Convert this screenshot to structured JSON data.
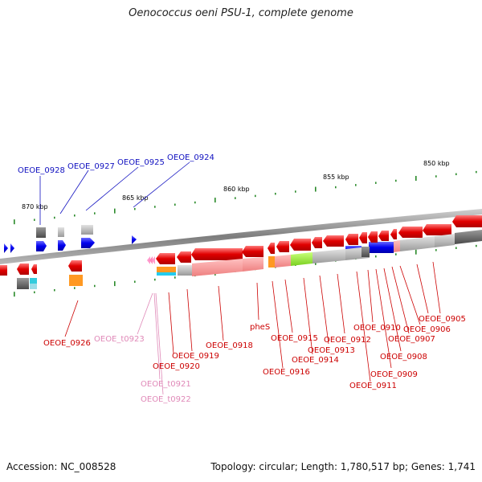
{
  "title": "Oenococcus oeni PSU-1, complete genome",
  "footer": {
    "accession": "Accession: NC_008528",
    "topology": "Topology: circular; Length: 1,780,517 bp; Genes: 1,741"
  },
  "scale_labels": [
    "850 kbp",
    "855 kbp",
    "860 kbp",
    "865 kbp",
    "870 kbp"
  ],
  "gene_labels": {
    "blue": [
      "OEOE_0928",
      "OEOE_0927",
      "OEOE_0925",
      "OEOE_0924"
    ],
    "red": [
      "OEOE_0926",
      "OEOE_0919",
      "OEOE_0920",
      "OEOE_0918",
      "pheS",
      "OEOE_0915",
      "OEOE_0916",
      "OEOE_0914",
      "OEOE_0913",
      "OEOE_0912",
      "OEOE_0910",
      "OEOE_0911",
      "OEOE_0909",
      "OEOE_0908",
      "OEOE_0907",
      "OEOE_0906",
      "OEOE_0905"
    ],
    "pink": [
      "OEOE_t0923",
      "OEOE_t0921",
      "OEOE_t0922"
    ]
  },
  "colors": {
    "forward_gene": "#1a1aff",
    "reverse_gene": "#ee1111",
    "trna": "#ff99cc",
    "backbone": "#8a8a8a",
    "tick": "#2a8a2a",
    "label_blue": "#1010c0",
    "label_red": "#cc0000",
    "label_pink": "#e089b8"
  }
}
